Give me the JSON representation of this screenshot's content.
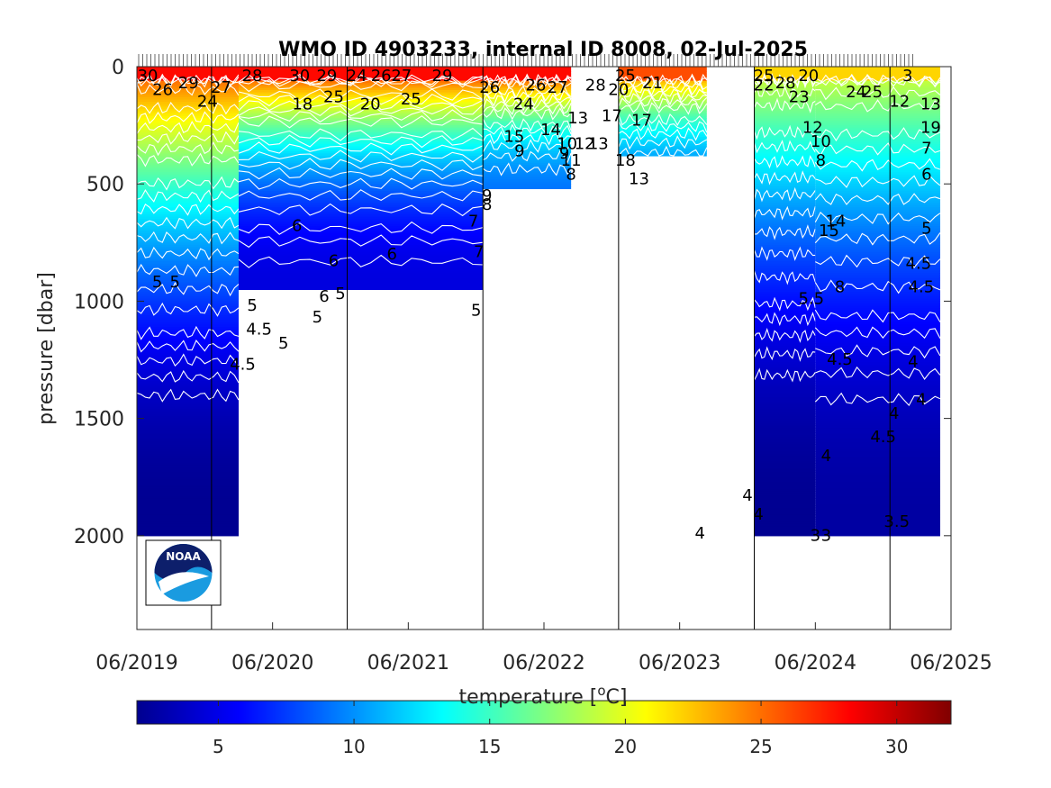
{
  "chart_data": {
    "type": "heatmap",
    "title": "WMO ID 4903233, internal ID 8008, 02-Jul-2025",
    "ylabel": "pressure [dbar]",
    "colorbar_label": "temperature [°C]",
    "colorbar_label_parts": {
      "prefix": "temperature [",
      "sup": "o",
      "suffix": "C]"
    },
    "x_ticks": [
      "06/2019",
      "06/2020",
      "06/2021",
      "06/2022",
      "06/2023",
      "06/2024",
      "06/2025"
    ],
    "y_ticks": [
      0,
      500,
      1000,
      1500,
      2000
    ],
    "ylim": [
      0,
      2400
    ],
    "y_reversed": true,
    "colorbar_ticks": [
      5,
      10,
      15,
      20,
      25,
      30
    ],
    "colorbar_range": [
      2,
      32
    ],
    "colormap": "jet",
    "logo": "noaa-logo",
    "profile_segments": [
      {
        "start": 0.0,
        "end": 0.75,
        "max_pressure": 2000,
        "mixed_layer_temp": 28,
        "deep_temp": 2.5
      },
      {
        "start": 0.75,
        "end": 2.55,
        "max_pressure": 950,
        "mixed_layer_temp": 28,
        "deep_temp": 4.8
      },
      {
        "start": 2.55,
        "end": 3.2,
        "max_pressure": 520,
        "mixed_layer_temp": 28,
        "deep_temp": 9
      },
      {
        "start": 3.55,
        "end": 4.2,
        "max_pressure": 380,
        "mixed_layer_temp": 26,
        "deep_temp": 9
      },
      {
        "start": 4.55,
        "end": 5.0,
        "max_pressure": 2000,
        "mixed_layer_temp": 22,
        "deep_temp": 2.5
      },
      {
        "start": 5.0,
        "end": 5.92,
        "max_pressure": 2000,
        "mixed_layer_temp": 22,
        "deep_temp": 3
      }
    ],
    "contour_levels": [
      4,
      4.5,
      5,
      5.5,
      6,
      7,
      8,
      9,
      10,
      11,
      12,
      13,
      14,
      15,
      17,
      18,
      19,
      20,
      21,
      22,
      24,
      25,
      26,
      27,
      28,
      29,
      30
    ],
    "contour_labels": [
      {
        "t": "30",
        "x": 0.08,
        "p": 0
      },
      {
        "t": "26",
        "x": 0.19,
        "p": 60
      },
      {
        "t": "29",
        "x": 0.38,
        "p": 30
      },
      {
        "t": "24",
        "x": 0.52,
        "p": 110
      },
      {
        "t": "27",
        "x": 0.62,
        "p": 50
      },
      {
        "t": "28",
        "x": 0.85,
        "p": 0
      },
      {
        "t": "5",
        "x": 0.15,
        "p": 880
      },
      {
        "t": "5",
        "x": 0.28,
        "p": 880
      },
      {
        "t": "4.5",
        "x": 0.78,
        "p": 1230
      },
      {
        "t": "5",
        "x": 0.85,
        "p": 980
      },
      {
        "t": "4.5",
        "x": 0.9,
        "p": 1080
      },
      {
        "t": "5",
        "x": 1.08,
        "p": 1140
      },
      {
        "t": "30",
        "x": 1.2,
        "p": 0
      },
      {
        "t": "29",
        "x": 1.4,
        "p": 0
      },
      {
        "t": "18",
        "x": 1.22,
        "p": 120
      },
      {
        "t": "25",
        "x": 1.45,
        "p": 90
      },
      {
        "t": "6",
        "x": 1.18,
        "p": 640
      },
      {
        "t": "6",
        "x": 1.45,
        "p": 790
      },
      {
        "t": "5",
        "x": 1.5,
        "p": 930
      },
      {
        "t": "5",
        "x": 1.33,
        "p": 1030
      },
      {
        "t": "6",
        "x": 1.38,
        "p": 940
      },
      {
        "t": "24",
        "x": 1.62,
        "p": 0
      },
      {
        "t": "20",
        "x": 1.72,
        "p": 120
      },
      {
        "t": "26",
        "x": 1.8,
        "p": 0
      },
      {
        "t": "27",
        "x": 1.95,
        "p": 0
      },
      {
        "t": "25",
        "x": 2.02,
        "p": 100
      },
      {
        "t": "6",
        "x": 1.88,
        "p": 760
      },
      {
        "t": "29",
        "x": 2.25,
        "p": 0
      },
      {
        "t": "26",
        "x": 2.6,
        "p": 50
      },
      {
        "t": "7",
        "x": 2.48,
        "p": 620
      },
      {
        "t": "7",
        "x": 2.52,
        "p": 750
      },
      {
        "t": "5",
        "x": 2.5,
        "p": 1000
      },
      {
        "t": "9",
        "x": 2.58,
        "p": 510
      },
      {
        "t": "8",
        "x": 2.58,
        "p": 550
      },
      {
        "t": "26",
        "x": 2.94,
        "p": 40
      },
      {
        "t": "24",
        "x": 2.85,
        "p": 120
      },
      {
        "t": "15",
        "x": 2.78,
        "p": 260
      },
      {
        "t": "9",
        "x": 2.82,
        "p": 320
      },
      {
        "t": "14",
        "x": 3.05,
        "p": 230
      },
      {
        "t": "27",
        "x": 3.1,
        "p": 50
      },
      {
        "t": "28",
        "x": 3.38,
        "p": 40
      },
      {
        "t": "13",
        "x": 3.25,
        "p": 180
      },
      {
        "t": "13",
        "x": 3.4,
        "p": 290
      },
      {
        "t": "12",
        "x": 3.3,
        "p": 290
      },
      {
        "t": "11",
        "x": 3.2,
        "p": 360
      },
      {
        "t": "10",
        "x": 3.17,
        "p": 290
      },
      {
        "t": "9",
        "x": 3.15,
        "p": 330
      },
      {
        "t": "8",
        "x": 3.2,
        "p": 420
      },
      {
        "t": "20",
        "x": 3.55,
        "p": 60
      },
      {
        "t": "17",
        "x": 3.5,
        "p": 170
      },
      {
        "t": "25",
        "x": 3.6,
        "p": 0
      },
      {
        "t": "21",
        "x": 3.8,
        "p": 30
      },
      {
        "t": "17",
        "x": 3.72,
        "p": 190
      },
      {
        "t": "18",
        "x": 3.6,
        "p": 360
      },
      {
        "t": "13",
        "x": 3.7,
        "p": 440
      },
      {
        "t": "4",
        "x": 4.15,
        "p": 1950
      },
      {
        "t": "4",
        "x": 4.5,
        "p": 1790
      },
      {
        "t": "4",
        "x": 4.58,
        "p": 1870
      },
      {
        "t": "25",
        "x": 4.62,
        "p": 0
      },
      {
        "t": "22",
        "x": 4.62,
        "p": 40
      },
      {
        "t": "28",
        "x": 4.78,
        "p": 30
      },
      {
        "t": "23",
        "x": 4.88,
        "p": 90
      },
      {
        "t": "20",
        "x": 4.95,
        "p": 0
      },
      {
        "t": "12",
        "x": 4.98,
        "p": 220
      },
      {
        "t": "10",
        "x": 5.04,
        "p": 280
      },
      {
        "t": "8",
        "x": 5.04,
        "p": 360
      },
      {
        "t": "5.5",
        "x": 4.97,
        "p": 950
      },
      {
        "t": "3",
        "x": 5.0,
        "p": 1960
      },
      {
        "t": "3",
        "x": 5.08,
        "p": 1960
      },
      {
        "t": "14",
        "x": 5.15,
        "p": 620
      },
      {
        "t": "15",
        "x": 5.1,
        "p": 660
      },
      {
        "t": "8",
        "x": 5.18,
        "p": 900
      },
      {
        "t": "4.5",
        "x": 5.18,
        "p": 1210
      },
      {
        "t": "4",
        "x": 5.08,
        "p": 1620
      },
      {
        "t": "24",
        "x": 5.3,
        "p": 70
      },
      {
        "t": "25",
        "x": 5.42,
        "p": 70
      },
      {
        "t": "12",
        "x": 5.62,
        "p": 110
      },
      {
        "t": "3",
        "x": 5.68,
        "p": 0
      },
      {
        "t": "13",
        "x": 5.85,
        "p": 120
      },
      {
        "t": "19",
        "x": 5.85,
        "p": 220
      },
      {
        "t": "7",
        "x": 5.82,
        "p": 310
      },
      {
        "t": "6",
        "x": 5.82,
        "p": 420
      },
      {
        "t": "5",
        "x": 5.82,
        "p": 650
      },
      {
        "t": "4.5",
        "x": 5.76,
        "p": 800
      },
      {
        "t": "4.5",
        "x": 5.78,
        "p": 900
      },
      {
        "t": "4",
        "x": 5.72,
        "p": 1220
      },
      {
        "t": "4",
        "x": 5.78,
        "p": 1380
      },
      {
        "t": "4",
        "x": 5.58,
        "p": 1440
      },
      {
        "t": "4.5",
        "x": 5.5,
        "p": 1540
      },
      {
        "t": "3.5",
        "x": 5.6,
        "p": 1900
      }
    ]
  }
}
